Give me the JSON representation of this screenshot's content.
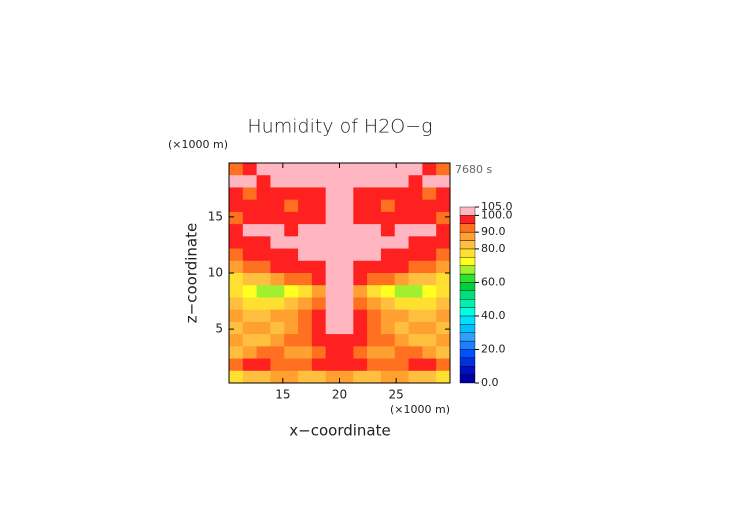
{
  "chart_data": {
    "type": "contour",
    "title": "Humidity of H2O−g",
    "x_label": "x−coordinate",
    "y_label": "z−coordinate",
    "x_unit": "(×1000 m)",
    "y_unit": "(×1000 m)",
    "time_label": "7680 s",
    "xlim": [
      10.25,
      29.75
    ],
    "ylim": [
      0.2,
      19.8
    ],
    "xticks": [
      15,
      20,
      25
    ],
    "yticks": [
      5,
      10,
      15
    ],
    "levels": [
      0,
      5,
      10,
      15,
      20,
      25,
      30,
      35,
      40,
      45,
      50,
      55,
      60,
      65,
      70,
      75,
      80,
      85,
      90,
      95,
      100,
      105
    ],
    "colors": [
      "#0000a0",
      "#0010c0",
      "#0030e0",
      "#0050ff",
      "#1a80ff",
      "#30a0ff",
      "#00c0ff",
      "#00e0ff",
      "#00ffe0",
      "#00f0b0",
      "#00e080",
      "#00d040",
      "#30e030",
      "#a0f030",
      "#ffff20",
      "#ffe030",
      "#ffc040",
      "#ffa030",
      "#ff7020",
      "#ff2020",
      "#ffb6c1"
    ],
    "colorbar_ticks": [
      {
        "value": 0,
        "label": "0.0"
      },
      {
        "value": 20,
        "label": "20.0"
      },
      {
        "value": 40,
        "label": "40.0"
      },
      {
        "value": 60,
        "label": "60.0"
      },
      {
        "value": 80,
        "label": "80.0"
      },
      {
        "value": 90,
        "label": "90.0"
      },
      {
        "value": 100,
        "label": "100.0"
      },
      {
        "value": 105,
        "label": "105.0"
      }
    ],
    "z": [
      [
        92,
        96,
        100,
        101,
        102,
        102,
        102,
        102,
        102,
        102,
        102,
        102,
        101,
        100,
        96,
        92
      ],
      [
        101,
        100,
        97,
        100,
        101,
        102,
        102,
        102,
        102,
        102,
        102,
        101,
        100,
        97,
        100,
        101
      ],
      [
        97,
        93,
        96,
        98,
        96,
        97,
        99,
        100,
        100,
        99,
        97,
        96,
        98,
        96,
        93,
        97
      ],
      [
        96,
        98,
        99,
        97,
        94,
        96,
        98,
        101,
        101,
        98,
        96,
        94,
        97,
        99,
        98,
        96
      ],
      [
        93,
        96,
        97,
        99,
        98,
        97,
        99,
        101,
        101,
        99,
        97,
        98,
        99,
        97,
        96,
        93
      ],
      [
        97,
        101,
        102,
        101,
        99,
        101,
        102,
        102,
        102,
        102,
        101,
        99,
        101,
        102,
        101,
        97
      ],
      [
        96,
        98,
        99,
        101,
        102,
        101,
        100,
        101,
        101,
        100,
        101,
        102,
        101,
        99,
        98,
        96
      ],
      [
        94,
        96,
        97,
        98,
        99,
        101,
        102,
        100,
        100,
        102,
        101,
        99,
        98,
        97,
        96,
        94
      ],
      [
        88,
        92,
        94,
        96,
        97,
        98,
        99,
        101,
        101,
        99,
        98,
        97,
        96,
        94,
        92,
        88
      ],
      [
        76,
        80,
        82,
        86,
        90,
        93,
        96,
        100,
        100,
        96,
        93,
        90,
        86,
        82,
        80,
        76
      ],
      [
        77,
        72,
        68,
        67,
        72,
        78,
        88,
        101,
        101,
        88,
        78,
        72,
        67,
        68,
        72,
        77
      ],
      [
        82,
        78,
        76,
        78,
        82,
        86,
        94,
        101,
        101,
        94,
        86,
        82,
        78,
        76,
        78,
        82
      ],
      [
        86,
        84,
        82,
        85,
        88,
        90,
        96,
        100,
        100,
        96,
        90,
        88,
        85,
        82,
        84,
        86
      ],
      [
        82,
        86,
        88,
        84,
        86,
        92,
        97,
        101,
        101,
        97,
        92,
        86,
        84,
        88,
        86,
        82
      ],
      [
        88,
        84,
        82,
        86,
        90,
        94,
        96,
        98,
        98,
        96,
        94,
        90,
        86,
        82,
        84,
        88
      ],
      [
        84,
        88,
        92,
        90,
        86,
        88,
        92,
        97,
        97,
        92,
        88,
        86,
        90,
        92,
        88,
        84
      ],
      [
        93,
        95,
        96,
        94,
        92,
        93,
        95,
        98,
        98,
        95,
        93,
        92,
        94,
        96,
        95,
        93
      ],
      [
        76,
        80,
        84,
        88,
        86,
        84,
        82,
        88,
        88,
        82,
        84,
        86,
        88,
        84,
        80,
        76
      ]
    ]
  }
}
